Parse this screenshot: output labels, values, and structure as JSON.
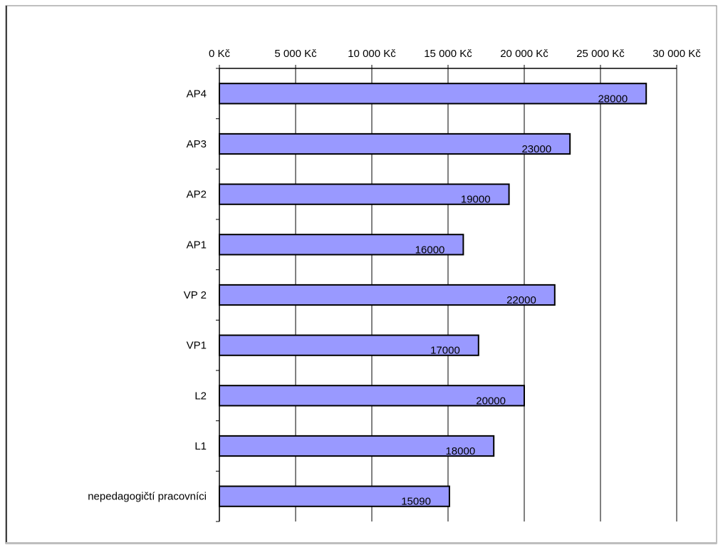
{
  "chart_data": {
    "type": "bar",
    "orientation": "horizontal",
    "categories": [
      "AP4",
      "AP3",
      "AP2",
      "AP1",
      "VP 2",
      "VP1",
      "L2",
      "L1",
      "nepedagogičtí pracovníci"
    ],
    "values": [
      28000,
      23000,
      19000,
      16000,
      22000,
      17000,
      20000,
      18000,
      15090
    ],
    "data_labels": [
      "28000",
      "23000",
      "19000",
      "16000",
      "22000",
      "17000",
      "20000",
      "18000",
      "15090"
    ],
    "xlim": [
      0,
      30000
    ],
    "x_ticks": [
      0,
      5000,
      10000,
      15000,
      20000,
      25000,
      30000
    ],
    "x_tick_labels": [
      "0 Kč",
      "5 000 Kč",
      "10 000 Kč",
      "15 000 Kč",
      "20 000 Kč",
      "25 000 Kč",
      "30 000 Kč"
    ],
    "x_axis_position": "top",
    "grid": "vertical",
    "legend": "none",
    "bar_color": "#9999ff",
    "bar_edge_color": "#000000",
    "title": "",
    "xlabel": "",
    "ylabel": ""
  }
}
